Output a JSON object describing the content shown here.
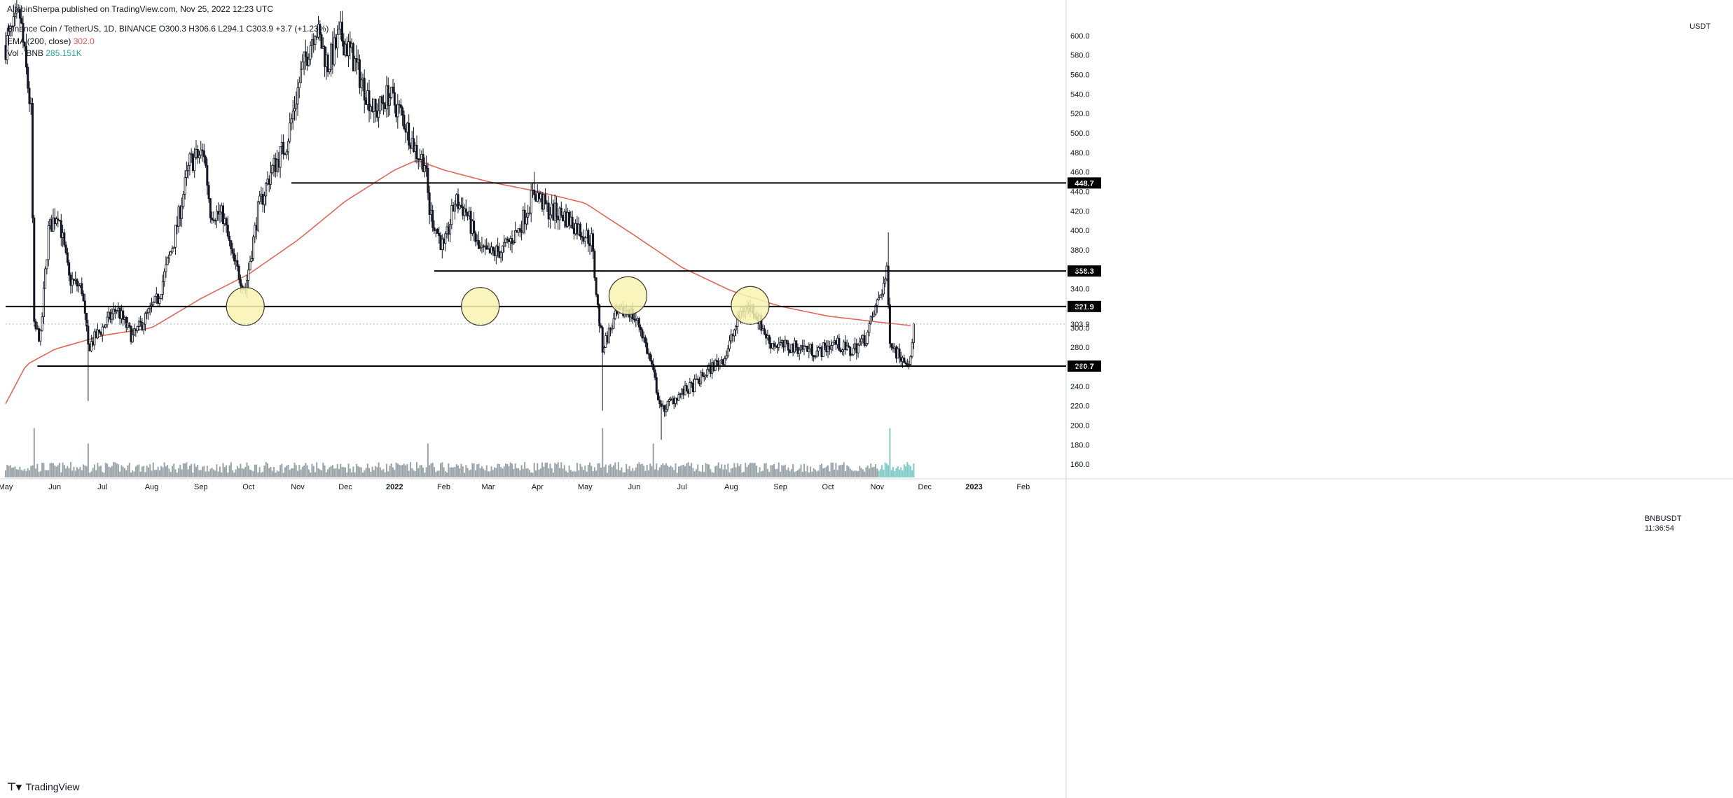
{
  "header": {
    "published": "AltcoinSherpa published on TradingView.com, Nov 25, 2022 12:23 UTC",
    "symbol_name": "Binance Coin / TetherUS, 1D, BINANCE",
    "ohlc": "O300.3 H306.6 L294.1 C303.9 +3.7 (+1.23%)",
    "ema_label": "EMA (200, close)",
    "ema_value": "302.0",
    "vol_label": "Vol · BNB",
    "vol_value": "285.151K"
  },
  "footer": {
    "logo_text": "TradingView"
  },
  "price_scale": {
    "quote": "USDT"
  },
  "last_price": {
    "pair": "BNBUSDT",
    "value": "303.9",
    "countdown": "11:36:54"
  },
  "colors": {
    "candle": "#131722",
    "ema": "#e0675a",
    "volume": "#9aa3a8",
    "volume_recent": "#7fcbc6",
    "circle_fill": "#f8f3b0",
    "circle_stroke": "#3a3a2a"
  },
  "chart_data": {
    "type": "candlestick",
    "symbol": "BNBUSDT",
    "interval": "1D",
    "x_axis": {
      "ticks": [
        "May",
        "Jun",
        "Jul",
        "Aug",
        "Sep",
        "Oct",
        "Nov",
        "Dec",
        "2022",
        "Feb",
        "Mar",
        "Apr",
        "May",
        "Jun",
        "Jul",
        "Aug",
        "Sep",
        "Oct",
        "Nov",
        "Dec",
        "2023",
        "Feb"
      ],
      "tick_dates": [
        "2021-05-01",
        "2021-06-01",
        "2021-07-01",
        "2021-08-01",
        "2021-09-01",
        "2021-10-01",
        "2021-11-01",
        "2021-12-01",
        "2022-01-01",
        "2022-02-01",
        "2022-03-01",
        "2022-04-01",
        "2022-05-01",
        "2022-06-01",
        "2022-07-01",
        "2022-08-01",
        "2022-09-01",
        "2022-10-01",
        "2022-11-01",
        "2022-12-01",
        "2023-01-01",
        "2023-02-01"
      ],
      "range": [
        "2021-05-01",
        "2023-02-28"
      ]
    },
    "y_axis": {
      "ticks": [
        160,
        180,
        200,
        220,
        240,
        260,
        280,
        300,
        320,
        340,
        360,
        380,
        400,
        420,
        440,
        460,
        480,
        500,
        520,
        540,
        560,
        580,
        600
      ],
      "ylim": [
        145,
        625
      ]
    },
    "price_path": [
      [
        "2021-05-01",
        590
      ],
      [
        "2021-05-10",
        620
      ],
      [
        "2021-05-17",
        520
      ],
      [
        "2021-05-19",
        300
      ],
      [
        "2021-05-23",
        290
      ],
      [
        "2021-05-28",
        400
      ],
      [
        "2021-06-03",
        420
      ],
      [
        "2021-06-10",
        350
      ],
      [
        "2021-06-18",
        340
      ],
      [
        "2021-06-22",
        280
      ],
      [
        "2021-07-01",
        300
      ],
      [
        "2021-07-10",
        320
      ],
      [
        "2021-07-20",
        290
      ],
      [
        "2021-07-28",
        310
      ],
      [
        "2021-08-05",
        330
      ],
      [
        "2021-08-15",
        390
      ],
      [
        "2021-08-25",
        470
      ],
      [
        "2021-09-03",
        480
      ],
      [
        "2021-09-07",
        420
      ],
      [
        "2021-09-15",
        415
      ],
      [
        "2021-09-21",
        370
      ],
      [
        "2021-09-29",
        340
      ],
      [
        "2021-10-07",
        420
      ],
      [
        "2021-10-15",
        460
      ],
      [
        "2021-10-25",
        490
      ],
      [
        "2021-11-03",
        560
      ],
      [
        "2021-11-12",
        610
      ],
      [
        "2021-11-20",
        570
      ],
      [
        "2021-11-28",
        600
      ],
      [
        "2021-12-05",
        580
      ],
      [
        "2021-12-12",
        550
      ],
      [
        "2021-12-20",
        520
      ],
      [
        "2021-12-28",
        540
      ],
      [
        "2022-01-05",
        520
      ],
      [
        "2022-01-15",
        480
      ],
      [
        "2022-01-20",
        470
      ],
      [
        "2022-01-23",
        420
      ],
      [
        "2022-02-01",
        380
      ],
      [
        "2022-02-08",
        430
      ],
      [
        "2022-02-15",
        420
      ],
      [
        "2022-02-23",
        380
      ],
      [
        "2022-03-01",
        375
      ],
      [
        "2022-03-10",
        380
      ],
      [
        "2022-03-20",
        400
      ],
      [
        "2022-03-30",
        440
      ],
      [
        "2022-04-08",
        420
      ],
      [
        "2022-04-18",
        415
      ],
      [
        "2022-04-28",
        400
      ],
      [
        "2022-05-05",
        390
      ],
      [
        "2022-05-09",
        320
      ],
      [
        "2022-05-12",
        280
      ],
      [
        "2022-05-20",
        310
      ],
      [
        "2022-05-28",
        320
      ],
      [
        "2022-06-05",
        300
      ],
      [
        "2022-06-12",
        260
      ],
      [
        "2022-06-18",
        215
      ],
      [
        "2022-06-28",
        230
      ],
      [
        "2022-07-08",
        240
      ],
      [
        "2022-07-20",
        260
      ],
      [
        "2022-07-28",
        270
      ],
      [
        "2022-08-08",
        320
      ],
      [
        "2022-08-15",
        320
      ],
      [
        "2022-08-25",
        285
      ],
      [
        "2022-09-05",
        280
      ],
      [
        "2022-09-15",
        280
      ],
      [
        "2022-09-25",
        275
      ],
      [
        "2022-10-05",
        285
      ],
      [
        "2022-10-15",
        275
      ],
      [
        "2022-10-25",
        290
      ],
      [
        "2022-11-02",
        330
      ],
      [
        "2022-11-07",
        355
      ],
      [
        "2022-11-09",
        290
      ],
      [
        "2022-11-13",
        275
      ],
      [
        "2022-11-22",
        265
      ],
      [
        "2022-11-24",
        303.9
      ]
    ],
    "wick_extremes": [
      [
        "2021-06-22",
        225
      ],
      [
        "2022-05-12",
        215
      ],
      [
        "2022-06-18",
        185
      ],
      [
        "2022-11-08",
        398
      ],
      [
        "2021-11-28",
        625
      ],
      [
        "2022-03-30",
        460
      ]
    ],
    "ema_200": [
      [
        "2021-05-01",
        222
      ],
      [
        "2021-05-14",
        262
      ],
      [
        "2021-06-01",
        278
      ],
      [
        "2021-07-01",
        292
      ],
      [
        "2021-08-01",
        300
      ],
      [
        "2021-09-01",
        330
      ],
      [
        "2021-10-01",
        355
      ],
      [
        "2021-11-01",
        390
      ],
      [
        "2021-12-01",
        430
      ],
      [
        "2022-01-01",
        462
      ],
      [
        "2022-01-15",
        472
      ],
      [
        "2022-02-01",
        462
      ],
      [
        "2022-03-01",
        450
      ],
      [
        "2022-04-01",
        440
      ],
      [
        "2022-05-01",
        428
      ],
      [
        "2022-06-01",
        395
      ],
      [
        "2022-07-01",
        362
      ],
      [
        "2022-08-01",
        338
      ],
      [
        "2022-09-01",
        322
      ],
      [
        "2022-10-01",
        312
      ],
      [
        "2022-11-01",
        306
      ],
      [
        "2022-11-24",
        302
      ]
    ],
    "horizontal_levels": [
      {
        "price": 448.7,
        "from": "2021-10-28",
        "label": "448.7"
      },
      {
        "price": 358.3,
        "from": "2022-01-26",
        "label": "358.3"
      },
      {
        "price": 321.9,
        "from": "2021-05-01",
        "label": "321.9"
      },
      {
        "price": 260.7,
        "from": "2021-05-21",
        "label": "260.7"
      }
    ],
    "highlight_circles": [
      {
        "date": "2021-09-29",
        "price": 322
      },
      {
        "date": "2022-02-24",
        "price": 322
      },
      {
        "date": "2022-05-28",
        "price": 333
      },
      {
        "date": "2022-08-13",
        "price": 323
      }
    ],
    "volume_spikes": [
      [
        "2021-05-19",
        "high"
      ],
      [
        "2021-06-22",
        "mid"
      ],
      [
        "2022-01-22",
        "mid"
      ],
      [
        "2022-05-12",
        "high"
      ],
      [
        "2022-06-13",
        "mid"
      ],
      [
        "2022-11-09",
        "high"
      ]
    ]
  }
}
